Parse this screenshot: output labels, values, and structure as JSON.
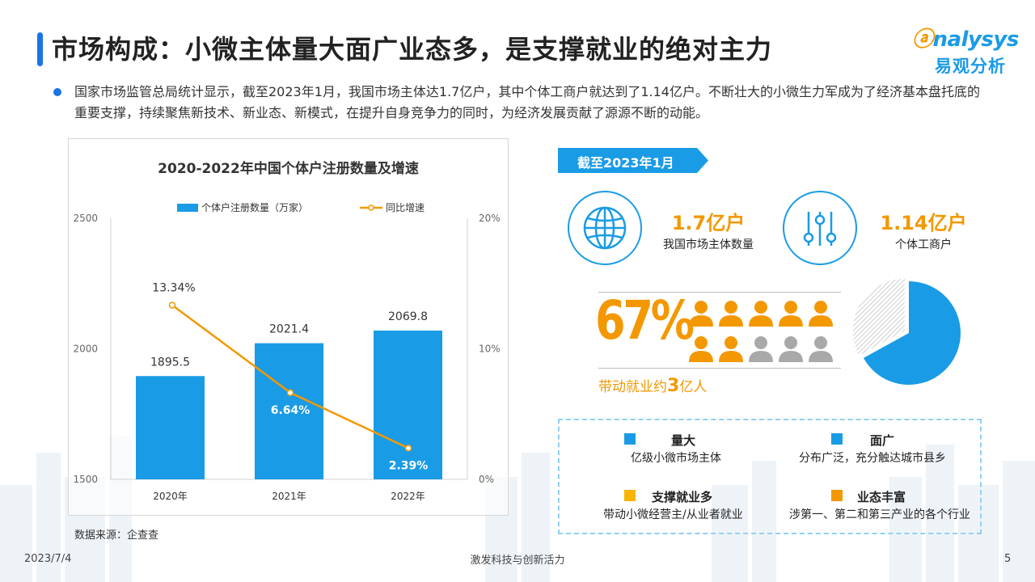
{
  "title": "市场构成：小微主体量大面广业态多，是支撑就业的绝对主力",
  "logo": {
    "en": "nalysys",
    "cn": "易观分析"
  },
  "intro": "国家市场监管总局统计显示，截至2023年1月，我国市场主体达1.7亿户，其中个体工商户就达到了1.14亿户。不断壮大的小微生力军成为了经济基本盘托底的重要支撑，持续聚焦新技术、新业态、新模式，在提升自身竞争力的同时，为经济发展贡献了源源不断的动能。",
  "chart_data": {
    "type": "bar",
    "title": "2020-2022年中国个体户注册数量及增速",
    "categories": [
      "2020年",
      "2021年",
      "2022年"
    ],
    "series": [
      {
        "name": "个体户注册数量（万家）",
        "type": "bar",
        "values": [
          1895.5,
          2021.4,
          2069.8
        ],
        "labels": [
          "1895.5",
          "2021.4",
          "2069.8"
        ],
        "axis": "left",
        "color": "#1a9be6"
      },
      {
        "name": "同比增速",
        "type": "line",
        "values": [
          13.34,
          6.64,
          2.39
        ],
        "labels": [
          "13.34%",
          "6.64%",
          "2.39%"
        ],
        "axis": "right",
        "color": "#f39800"
      }
    ],
    "y_left": {
      "range": [
        1500,
        2500
      ],
      "ticks": [
        "1500",
        "2000",
        "2500"
      ]
    },
    "y_right": {
      "range": [
        0,
        20
      ],
      "ticks": [
        "0%",
        "10%",
        "20%"
      ]
    },
    "legend": "top",
    "grid": false
  },
  "source": "数据来源：企查查",
  "date_tag": "截至2023年1月",
  "stats": [
    {
      "icon": "globe-icon",
      "value": "1.7亿户",
      "label": "我国市场主体数量"
    },
    {
      "icon": "sliders-icon",
      "value": "1.14亿户",
      "label": "个体工商户"
    }
  ],
  "employment": {
    "percent": "67%",
    "share": 0.67,
    "people_total": 10,
    "people_highlighted": 7,
    "text_prefix": "带动就业约",
    "text_number": "3",
    "text_suffix": "亿人"
  },
  "features": [
    {
      "title": "量大",
      "desc": "亿级小微市场主体",
      "color": "#1a9be6"
    },
    {
      "title": "面广",
      "desc": "分布广泛，充分触达城市县乡",
      "color": "#1a9be6"
    },
    {
      "title": "支撑就业多",
      "desc": "带动小微经营主/从业者就业",
      "color": "#f7b500"
    },
    {
      "title": "业态丰富",
      "desc": "涉第一、第二和第三产业的各个行业",
      "color": "#f39800"
    }
  ],
  "footer": {
    "date": "2023/7/4",
    "center": "激发科技与创新活力",
    "page": "5"
  },
  "colors": {
    "accent_blue": "#1a9be6",
    "accent_orange": "#f39800",
    "title_bar": "#1a73e8"
  }
}
